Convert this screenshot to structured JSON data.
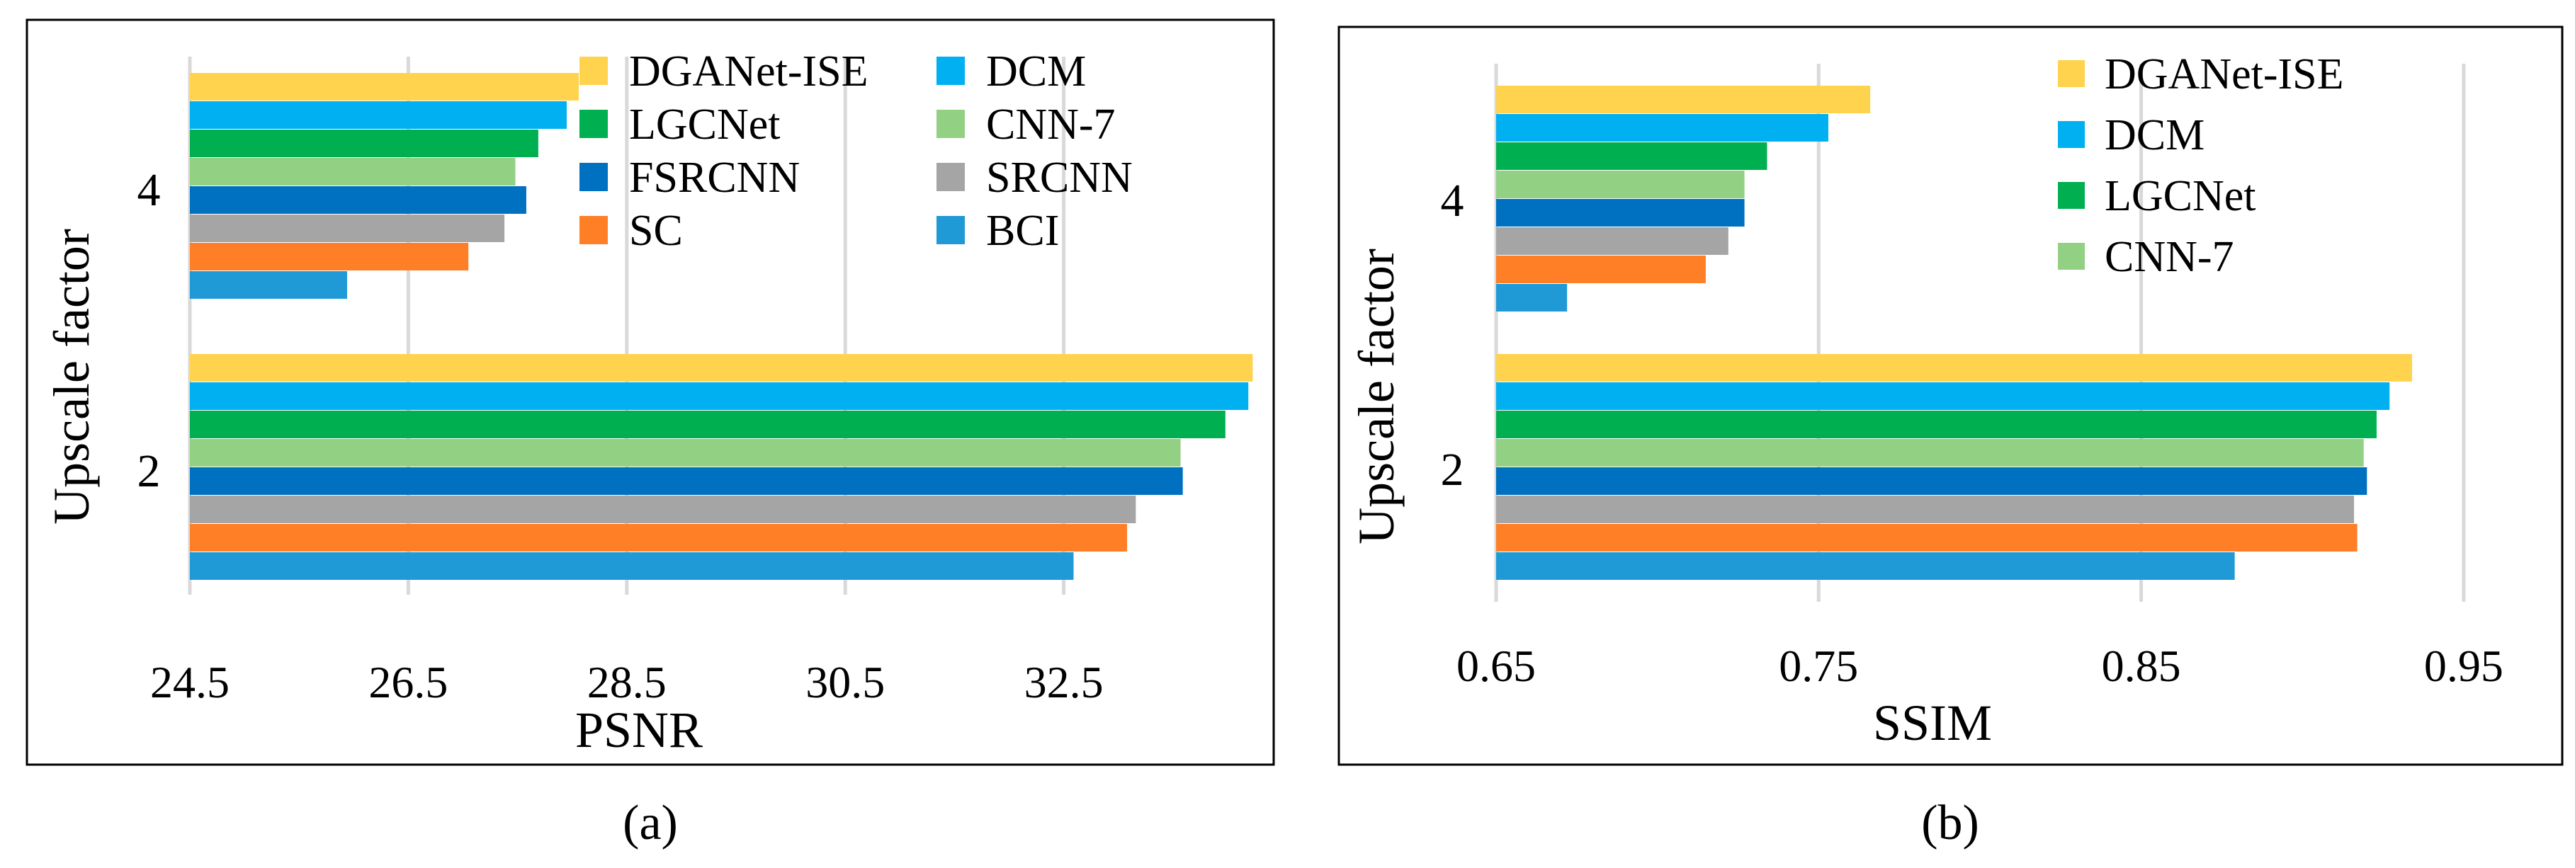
{
  "chart_data": [
    {
      "type": "bar",
      "orientation": "horizontal",
      "panel_label": "(a)",
      "title": "",
      "xlabel": "PSNR",
      "ylabel": "Upscale factor",
      "xlim": [
        24.5,
        34.5
      ],
      "xticks": [
        "24.5",
        "26.5",
        "28.5",
        "30.5",
        "32.5"
      ],
      "xtick_values": [
        24.5,
        26.5,
        28.5,
        30.5,
        32.5
      ],
      "grid": true,
      "legend_position": "top-right",
      "categories": [
        "4",
        "2"
      ],
      "series": [
        {
          "name": "DGANet-ISE",
          "color": "#ffd34d",
          "values": [
            28.06,
            34.23
          ]
        },
        {
          "name": "DCM",
          "color": "#00b0f0",
          "values": [
            27.95,
            34.19
          ]
        },
        {
          "name": "LGCNet",
          "color": "#00b050",
          "values": [
            27.69,
            33.98
          ]
        },
        {
          "name": "CNN-7",
          "color": "#92d084",
          "values": [
            27.48,
            33.57
          ]
        },
        {
          "name": "FSRCNN",
          "color": "#0070c0",
          "values": [
            27.58,
            33.59
          ]
        },
        {
          "name": "SRCNN",
          "color": "#a5a5a5",
          "values": [
            27.38,
            33.16
          ]
        },
        {
          "name": "SC",
          "color": "#ff7f27",
          "values": [
            27.05,
            33.08
          ]
        },
        {
          "name": "BCI",
          "color": "#1f9ad6",
          "values": [
            25.94,
            32.59
          ]
        }
      ]
    },
    {
      "type": "bar",
      "orientation": "horizontal",
      "panel_label": "(b)",
      "title": "",
      "xlabel": "SSIM",
      "ylabel": "Upscale factor",
      "xlim": [
        0.65,
        0.99
      ],
      "xticks": [
        "0.65",
        "0.75",
        "0.85",
        "0.95"
      ],
      "xtick_values": [
        0.65,
        0.75,
        0.85,
        0.95
      ],
      "grid": true,
      "legend_position": "top-right",
      "categories": [
        "4",
        "2"
      ],
      "series": [
        {
          "name": "DGANet-ISE",
          "color": "#ffd34d",
          "values": [
            0.766,
            0.934
          ]
        },
        {
          "name": "DCM",
          "color": "#00b0f0",
          "values": [
            0.753,
            0.927
          ]
        },
        {
          "name": "LGCNet",
          "color": "#00b050",
          "values": [
            0.734,
            0.923
          ]
        },
        {
          "name": "CNN-7",
          "color": "#92d084",
          "values": [
            0.727,
            0.919
          ]
        },
        {
          "name": "FSRCNN",
          "color": "#0070c0",
          "values": [
            0.727,
            0.92
          ]
        },
        {
          "name": "SRCNN",
          "color": "#a5a5a5",
          "values": [
            0.722,
            0.916
          ]
        },
        {
          "name": "SC",
          "color": "#ff7f27",
          "values": [
            0.715,
            0.917
          ]
        },
        {
          "name": "BCI",
          "color": "#1f9ad6",
          "values": [
            0.672,
            0.879
          ]
        }
      ],
      "legend_visible": [
        "DGANet-ISE",
        "DCM",
        "LGCNet",
        "CNN-7"
      ]
    }
  ]
}
